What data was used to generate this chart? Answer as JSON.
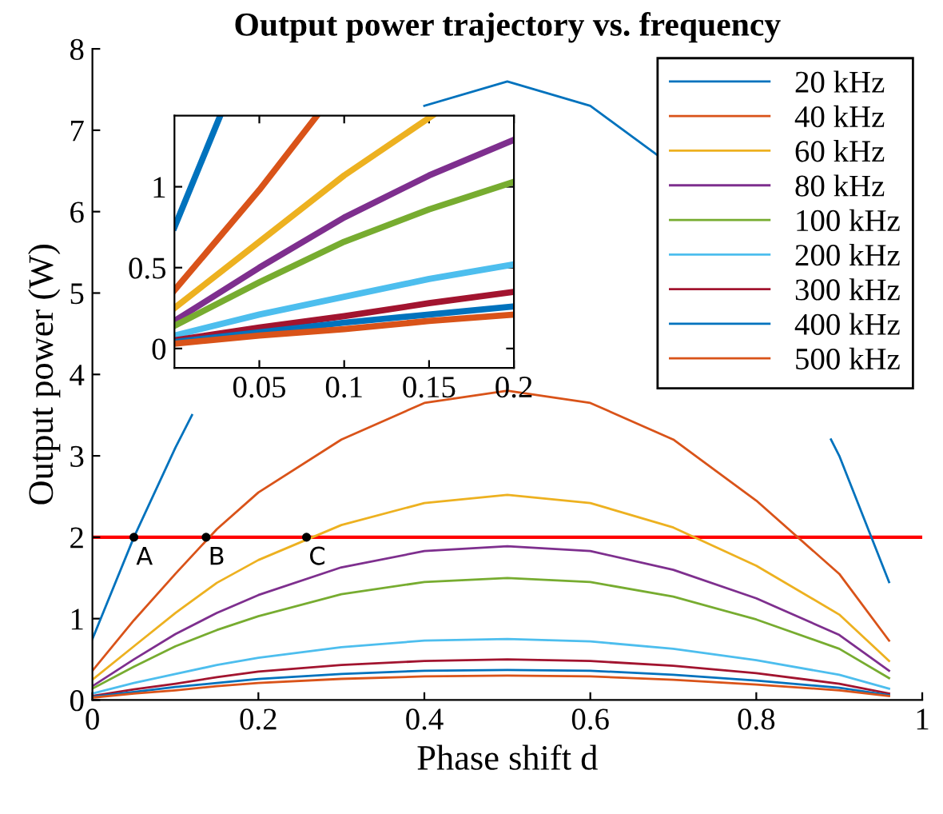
{
  "chart_data": [
    {
      "type": "line",
      "title": "Output power trajectory vs. frequency",
      "xlabel": "Phase shift d",
      "ylabel": "Output power (W)",
      "x": [
        0,
        0.05,
        0.1,
        0.15,
        0.2,
        0.3,
        0.4,
        0.5,
        0.6,
        0.7,
        0.8,
        0.9,
        0.96
      ],
      "series": [
        {
          "name": "20 kHz",
          "color": "#0072bd",
          "x": [
            0,
            0.05,
            0.1,
            0.12,
            0.2,
            0.4,
            0.5,
            0.6,
            0.68,
            0.8,
            0.89,
            0.9,
            0.96
          ],
          "values": [
            0.75,
            2.0,
            3.1,
            3.5,
            null,
            7.3,
            7.6,
            7.3,
            6.7,
            null,
            3.2,
            3.0,
            1.45
          ]
        },
        {
          "name": "40 kHz",
          "color": "#d95319",
          "values": [
            0.36,
            0.98,
            1.55,
            2.1,
            2.55,
            3.2,
            3.65,
            3.8,
            3.65,
            3.2,
            2.45,
            1.55,
            0.73
          ]
        },
        {
          "name": "60 kHz",
          "color": "#edb120",
          "values": [
            0.25,
            0.66,
            1.07,
            1.44,
            1.72,
            2.15,
            2.42,
            2.52,
            2.42,
            2.12,
            1.65,
            1.05,
            0.48
          ]
        },
        {
          "name": "80 kHz",
          "color": "#7e2f8e",
          "values": [
            0.17,
            0.5,
            0.81,
            1.07,
            1.29,
            1.63,
            1.83,
            1.89,
            1.83,
            1.6,
            1.25,
            0.8,
            0.36
          ]
        },
        {
          "name": "100 kHz",
          "color": "#77ac30",
          "values": [
            0.14,
            0.41,
            0.66,
            0.86,
            1.03,
            1.3,
            1.45,
            1.5,
            1.45,
            1.27,
            0.99,
            0.63,
            0.27
          ]
        },
        {
          "name": "200 kHz",
          "color": "#4dbeee",
          "values": [
            0.08,
            0.21,
            0.32,
            0.43,
            0.52,
            0.65,
            0.73,
            0.75,
            0.72,
            0.63,
            0.49,
            0.31,
            0.14
          ]
        },
        {
          "name": "300 kHz",
          "color": "#a2142f",
          "values": [
            0.05,
            0.13,
            0.2,
            0.28,
            0.35,
            0.43,
            0.48,
            0.5,
            0.48,
            0.42,
            0.33,
            0.2,
            0.08
          ]
        },
        {
          "name": "400 kHz",
          "color": "#0072bd",
          "values": [
            0.04,
            0.1,
            0.16,
            0.21,
            0.26,
            0.32,
            0.36,
            0.37,
            0.36,
            0.31,
            0.24,
            0.15,
            0.06
          ]
        },
        {
          "name": "500 kHz",
          "color": "#d95319",
          "values": [
            0.03,
            0.08,
            0.12,
            0.17,
            0.21,
            0.26,
            0.29,
            0.3,
            0.29,
            0.25,
            0.19,
            0.12,
            0.05
          ]
        }
      ],
      "xlim": [
        0,
        1
      ],
      "ylim": [
        0,
        8
      ],
      "xticks": [
        0,
        0.2,
        0.4,
        0.6,
        0.8,
        1
      ],
      "yticks": [
        0,
        1,
        2,
        3,
        4,
        5,
        6,
        7,
        8
      ],
      "ref_lines": [
        {
          "axis": "y",
          "value": 2,
          "color": "#ff0000"
        }
      ],
      "annotations": [
        {
          "text": "A",
          "x": 0.05,
          "y": 2
        },
        {
          "text": "B",
          "x": 0.137,
          "y": 2
        },
        {
          "text": "C",
          "x": 0.258,
          "y": 2
        }
      ],
      "legend": "top right",
      "grid": false
    },
    {
      "type": "line",
      "x": [
        0,
        0.05,
        0.1,
        0.15,
        0.2
      ],
      "series": [
        {
          "color": "#0072bd",
          "x": [
            0,
            0.027
          ],
          "values": [
            0.75,
            1.44
          ]
        },
        {
          "color": "#d95319",
          "x": [
            0,
            0.05,
            0.084
          ],
          "values": [
            0.36,
            0.98,
            1.44
          ]
        },
        {
          "color": "#edb120",
          "x": [
            0,
            0.05,
            0.1,
            0.152
          ],
          "values": [
            0.25,
            0.66,
            1.07,
            1.44
          ]
        },
        {
          "color": "#7e2f8e",
          "values": [
            0.17,
            0.5,
            0.81,
            1.07,
            1.29
          ]
        },
        {
          "color": "#77ac30",
          "values": [
            0.14,
            0.41,
            0.66,
            0.86,
            1.03
          ]
        },
        {
          "color": "#4dbeee",
          "values": [
            0.08,
            0.21,
            0.32,
            0.43,
            0.52
          ]
        },
        {
          "color": "#a2142f",
          "values": [
            0.05,
            0.13,
            0.2,
            0.28,
            0.35
          ]
        },
        {
          "color": "#0072bd",
          "values": [
            0.04,
            0.1,
            0.16,
            0.21,
            0.26
          ]
        },
        {
          "color": "#d95319",
          "values": [
            0.03,
            0.08,
            0.12,
            0.17,
            0.21
          ]
        }
      ],
      "xlim": [
        0,
        0.2
      ],
      "ylim": [
        -0.12,
        1.44
      ],
      "xticks": [
        0.05,
        0.1,
        0.15,
        0.2
      ],
      "yticks": [
        0,
        0.5,
        1
      ],
      "grid": false
    }
  ]
}
